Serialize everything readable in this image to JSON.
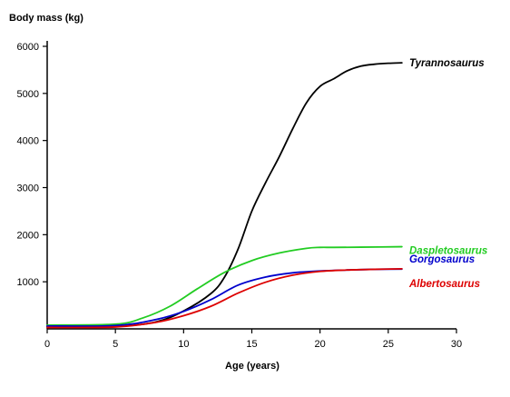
{
  "chart_data": {
    "type": "line",
    "title": "",
    "ylabel": "Body mass (kg)",
    "xlabel": "Age (years)",
    "xlim": [
      0,
      30
    ],
    "ylim": [
      0,
      6000
    ],
    "xticks": [
      0,
      5,
      10,
      15,
      20,
      25,
      30
    ],
    "yticks": [
      1000,
      2000,
      3000,
      4000,
      5000,
      6000
    ],
    "grid": false,
    "legend": "inline-right",
    "series": [
      {
        "name": "Tyrannosaurus",
        "color": "#000000",
        "points": [
          [
            0,
            50
          ],
          [
            5,
            50
          ],
          [
            8,
            150
          ],
          [
            10,
            380
          ],
          [
            12,
            750
          ],
          [
            13,
            1100
          ],
          [
            14,
            1700
          ],
          [
            15,
            2500
          ],
          [
            16,
            3100
          ],
          [
            17,
            3650
          ],
          [
            18,
            4250
          ],
          [
            19,
            4800
          ],
          [
            20,
            5150
          ],
          [
            21,
            5310
          ],
          [
            22,
            5480
          ],
          [
            23,
            5580
          ],
          [
            24,
            5620
          ],
          [
            25,
            5640
          ],
          [
            26,
            5650
          ]
        ]
      },
      {
        "name": "Daspletosaurus",
        "color": "#22cc22",
        "points": [
          [
            0,
            80
          ],
          [
            5,
            100
          ],
          [
            7,
            230
          ],
          [
            9,
            480
          ],
          [
            11,
            850
          ],
          [
            13,
            1200
          ],
          [
            15,
            1450
          ],
          [
            17,
            1610
          ],
          [
            19,
            1710
          ],
          [
            20,
            1730
          ],
          [
            21,
            1730
          ],
          [
            23,
            1735
          ],
          [
            26,
            1745
          ]
        ]
      },
      {
        "name": "Gorgosaurus",
        "color": "#0000cc",
        "points": [
          [
            0,
            60
          ],
          [
            5,
            70
          ],
          [
            8,
            200
          ],
          [
            10,
            370
          ],
          [
            12,
            620
          ],
          [
            14,
            930
          ],
          [
            16,
            1100
          ],
          [
            18,
            1190
          ],
          [
            20,
            1230
          ],
          [
            22,
            1250
          ],
          [
            24,
            1265
          ],
          [
            26,
            1270
          ]
        ]
      },
      {
        "name": "Albertosaurus",
        "color": "#dd0000",
        "points": [
          [
            0,
            30
          ],
          [
            5,
            40
          ],
          [
            8,
            140
          ],
          [
            10,
            280
          ],
          [
            12,
            480
          ],
          [
            14,
            760
          ],
          [
            16,
            990
          ],
          [
            18,
            1140
          ],
          [
            20,
            1220
          ],
          [
            22,
            1250
          ],
          [
            24,
            1265
          ],
          [
            26,
            1275
          ]
        ]
      }
    ]
  }
}
